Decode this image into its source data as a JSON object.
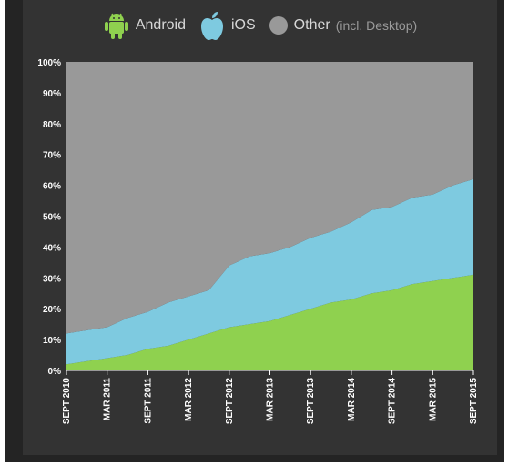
{
  "legend": [
    {
      "label": "Android",
      "icon": "android-icon",
      "color": "#8fd14f"
    },
    {
      "label": "iOS",
      "icon": "apple-icon",
      "color": "#7ecae0"
    },
    {
      "label": "Other",
      "suffix": "(incl. Desktop)",
      "icon": "circle-icon",
      "color": "#999999"
    }
  ],
  "chart_data": {
    "type": "area",
    "stacked": true,
    "ylim": [
      0,
      100
    ],
    "yticks": [
      "0%",
      "10%",
      "20%",
      "30%",
      "40%",
      "50%",
      "60%",
      "70%",
      "80%",
      "90%",
      "100%"
    ],
    "xticks": [
      "SEPT 2010",
      "MAR 2011",
      "SEPT 2011",
      "MAR 2012",
      "SEPT 2012",
      "MAR 2013",
      "SEPT 2013",
      "MAR 2014",
      "SEPT 2014",
      "MAR 2015",
      "SEPT 2015"
    ],
    "x": [
      "SEPT 2010",
      "DEC 2010",
      "MAR 2011",
      "JUN 2011",
      "SEPT 2011",
      "DEC 2011",
      "MAR 2012",
      "JUN 2012",
      "SEPT 2012",
      "DEC 2012",
      "MAR 2013",
      "JUN 2013",
      "SEPT 2013",
      "DEC 2013",
      "MAR 2014",
      "JUN 2014",
      "SEPT 2014",
      "DEC 2014",
      "MAR 2015",
      "JUN 2015",
      "SEPT 2015"
    ],
    "series": [
      {
        "name": "Android",
        "color": "#8fd14f",
        "values": [
          2,
          3,
          4,
          5,
          7,
          8,
          10,
          12,
          14,
          15,
          16,
          18,
          20,
          22,
          23,
          25,
          26,
          28,
          29,
          30,
          31
        ]
      },
      {
        "name": "iOS",
        "color": "#7ecae0",
        "values": [
          10,
          10,
          10,
          12,
          12,
          14,
          14,
          14,
          20,
          22,
          22,
          22,
          23,
          23,
          25,
          27,
          27,
          28,
          28,
          30,
          31
        ]
      },
      {
        "name": "Other (incl. Desktop)",
        "color": "#999999",
        "values": [
          88,
          87,
          86,
          83,
          81,
          78,
          76,
          74,
          66,
          63,
          62,
          60,
          57,
          55,
          52,
          48,
          47,
          44,
          43,
          40,
          38
        ]
      }
    ]
  }
}
